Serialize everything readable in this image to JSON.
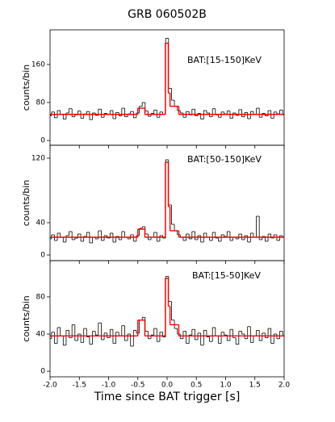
{
  "chart_data": [
    {
      "type": "line",
      "title": "GRB 060502B",
      "ylabel": "counts/bin",
      "annotation": "BAT:[15-150]KeV",
      "xlim": [
        -2.0,
        2.0
      ],
      "ylim": [
        -10,
        233
      ],
      "yticks": [
        0,
        80,
        160
      ],
      "series": [
        {
          "color": "#000000",
          "bin_width": 0.05,
          "x": [
            -2.0,
            -1.95,
            -1.9,
            -1.85,
            -1.8,
            -1.75,
            -1.7,
            -1.65,
            -1.6,
            -1.55,
            -1.5,
            -1.45,
            -1.4,
            -1.35,
            -1.3,
            -1.25,
            -1.2,
            -1.15,
            -1.1,
            -1.05,
            -1.0,
            -0.95,
            -0.9,
            -0.85,
            -0.8,
            -0.75,
            -0.7,
            -0.65,
            -0.6,
            -0.55,
            -0.5,
            -0.45,
            -0.4,
            -0.35,
            -0.3,
            -0.25,
            -0.2,
            -0.15,
            -0.1,
            -0.05,
            0.0,
            0.05,
            0.1,
            0.15,
            0.2,
            0.25,
            0.3,
            0.35,
            0.4,
            0.45,
            0.5,
            0.55,
            0.6,
            0.65,
            0.7,
            0.75,
            0.8,
            0.85,
            0.9,
            0.95,
            1.0,
            1.05,
            1.1,
            1.15,
            1.2,
            1.25,
            1.3,
            1.35,
            1.4,
            1.45,
            1.5,
            1.55,
            1.6,
            1.65,
            1.7,
            1.75,
            1.8,
            1.85,
            1.9,
            1.95,
            2.0
          ],
          "values": [
            52,
            60,
            48,
            63,
            55,
            45,
            58,
            67,
            50,
            54,
            62,
            47,
            56,
            61,
            44,
            58,
            53,
            66,
            49,
            57,
            55,
            63,
            46,
            59,
            52,
            68,
            50,
            56,
            61,
            48,
            58,
            72,
            80,
            62,
            51,
            57,
            64,
            49,
            60,
            55,
            215,
            110,
            85,
            72,
            63,
            58,
            49,
            61,
            54,
            66,
            52,
            57,
            45,
            63,
            58,
            50,
            67,
            54,
            49,
            60,
            56,
            62,
            47,
            58,
            53,
            65,
            50,
            59,
            46,
            61,
            55,
            68,
            49,
            57,
            52,
            63,
            47,
            60,
            56,
            64,
            54
          ]
        },
        {
          "color": "#ff0000",
          "x": [
            -2.0,
            -0.5,
            -0.38,
            -0.03,
            0.02,
            0.05,
            0.2,
            2.0
          ],
          "values": [
            55,
            68,
            55,
            205,
            100,
            72,
            55,
            55
          ]
        }
      ]
    },
    {
      "type": "line",
      "ylabel": "counts/bin",
      "annotation": "BAT:[50-150]KeV",
      "xlim": [
        -2.0,
        2.0
      ],
      "ylim": [
        -7,
        136
      ],
      "yticks": [
        0,
        40,
        120
      ],
      "series": [
        {
          "color": "#000000",
          "bin_width": 0.05,
          "x": [
            -2.0,
            -1.95,
            -1.9,
            -1.85,
            -1.8,
            -1.75,
            -1.7,
            -1.65,
            -1.6,
            -1.55,
            -1.5,
            -1.45,
            -1.4,
            -1.35,
            -1.3,
            -1.25,
            -1.2,
            -1.15,
            -1.1,
            -1.05,
            -1.0,
            -0.95,
            -0.9,
            -0.85,
            -0.8,
            -0.75,
            -0.7,
            -0.65,
            -0.6,
            -0.55,
            -0.5,
            -0.45,
            -0.4,
            -0.35,
            -0.3,
            -0.25,
            -0.2,
            -0.15,
            -0.1,
            -0.05,
            0.0,
            0.05,
            0.1,
            0.15,
            0.2,
            0.25,
            0.3,
            0.35,
            0.4,
            0.45,
            0.5,
            0.55,
            0.6,
            0.65,
            0.7,
            0.75,
            0.8,
            0.85,
            0.9,
            0.95,
            1.0,
            1.05,
            1.1,
            1.15,
            1.2,
            1.25,
            1.3,
            1.35,
            1.4,
            1.45,
            1.5,
            1.55,
            1.6,
            1.65,
            1.7,
            1.75,
            1.8,
            1.85,
            1.9,
            1.95,
            2.0
          ],
          "values": [
            20,
            25,
            18,
            27,
            22,
            16,
            24,
            29,
            19,
            21,
            26,
            17,
            23,
            28,
            15,
            22,
            20,
            30,
            18,
            24,
            21,
            27,
            16,
            23,
            19,
            29,
            22,
            20,
            25,
            17,
            24,
            33,
            35,
            26,
            19,
            22,
            28,
            17,
            24,
            21,
            118,
            62,
            38,
            30,
            25,
            22,
            18,
            26,
            20,
            29,
            19,
            24,
            16,
            27,
            22,
            18,
            28,
            21,
            17,
            25,
            23,
            29,
            18,
            22,
            20,
            26,
            19,
            24,
            16,
            27,
            22,
            48,
            19,
            23,
            17,
            26,
            21,
            25,
            18,
            24,
            22
          ]
        },
        {
          "color": "#ff0000",
          "x": [
            -2.0,
            -0.5,
            -0.38,
            -0.03,
            0.02,
            0.05,
            0.2,
            2.0
          ],
          "values": [
            22,
            32,
            22,
            115,
            60,
            30,
            22,
            22
          ]
        }
      ]
    },
    {
      "type": "line",
      "ylabel": "counts/bin",
      "annotation": "BAT:[15-50]KeV",
      "xlabel": "Time since BAT trigger [s]",
      "xlim": [
        -2.0,
        2.0
      ],
      "ylim": [
        -6,
        119
      ],
      "yticks": [
        0,
        40,
        80
      ],
      "xticks": [
        {
          "value": -2.0,
          "label": "-2.0"
        },
        {
          "value": -1.5,
          "label": "-1.5"
        },
        {
          "value": -1.0,
          "label": "-1.0"
        },
        {
          "value": -0.5,
          "label": "-0.5"
        },
        {
          "value": 0.0,
          "label": "0.0"
        },
        {
          "value": 0.5,
          "label": "0.5"
        },
        {
          "value": 1.0,
          "label": "1.0"
        },
        {
          "value": 1.5,
          "label": "1.5"
        },
        {
          "value": 2.0,
          "label": "2.0"
        }
      ],
      "series": [
        {
          "color": "#000000",
          "bin_width": 0.05,
          "x": [
            -2.0,
            -1.95,
            -1.9,
            -1.85,
            -1.8,
            -1.75,
            -1.7,
            -1.65,
            -1.6,
            -1.55,
            -1.5,
            -1.45,
            -1.4,
            -1.35,
            -1.3,
            -1.25,
            -1.2,
            -1.15,
            -1.1,
            -1.05,
            -1.0,
            -0.95,
            -0.9,
            -0.85,
            -0.8,
            -0.75,
            -0.7,
            -0.65,
            -0.6,
            -0.55,
            -0.5,
            -0.45,
            -0.4,
            -0.35,
            -0.3,
            -0.25,
            -0.2,
            -0.15,
            -0.1,
            -0.05,
            0.0,
            0.05,
            0.1,
            0.15,
            0.2,
            0.25,
            0.3,
            0.35,
            0.4,
            0.45,
            0.5,
            0.55,
            0.6,
            0.65,
            0.7,
            0.75,
            0.8,
            0.85,
            0.9,
            0.95,
            1.0,
            1.05,
            1.1,
            1.15,
            1.2,
            1.25,
            1.3,
            1.35,
            1.4,
            1.45,
            1.5,
            1.55,
            1.6,
            1.65,
            1.7,
            1.75,
            1.8,
            1.85,
            1.9,
            1.95,
            2.0
          ],
          "values": [
            35,
            42,
            30,
            47,
            38,
            28,
            44,
            36,
            50,
            33,
            40,
            31,
            46,
            37,
            29,
            43,
            39,
            52,
            34,
            41,
            36,
            45,
            30,
            42,
            38,
            49,
            33,
            40,
            27,
            44,
            41,
            55,
            58,
            43,
            35,
            39,
            46,
            32,
            42,
            37,
            102,
            75,
            55,
            46,
            40,
            35,
            43,
            30,
            39,
            45,
            34,
            41,
            28,
            44,
            37,
            32,
            47,
            38,
            30,
            42,
            39,
            33,
            45,
            36,
            29,
            43,
            40,
            35,
            48,
            31,
            38,
            44,
            33,
            41,
            36,
            46,
            30,
            40,
            35,
            43,
            38
          ]
        },
        {
          "color": "#ff0000",
          "x": [
            -2.0,
            -0.5,
            -0.38,
            -0.03,
            0.02,
            0.05,
            0.2,
            2.0
          ],
          "values": [
            38,
            55,
            38,
            100,
            70,
            50,
            38,
            38
          ]
        }
      ]
    }
  ]
}
